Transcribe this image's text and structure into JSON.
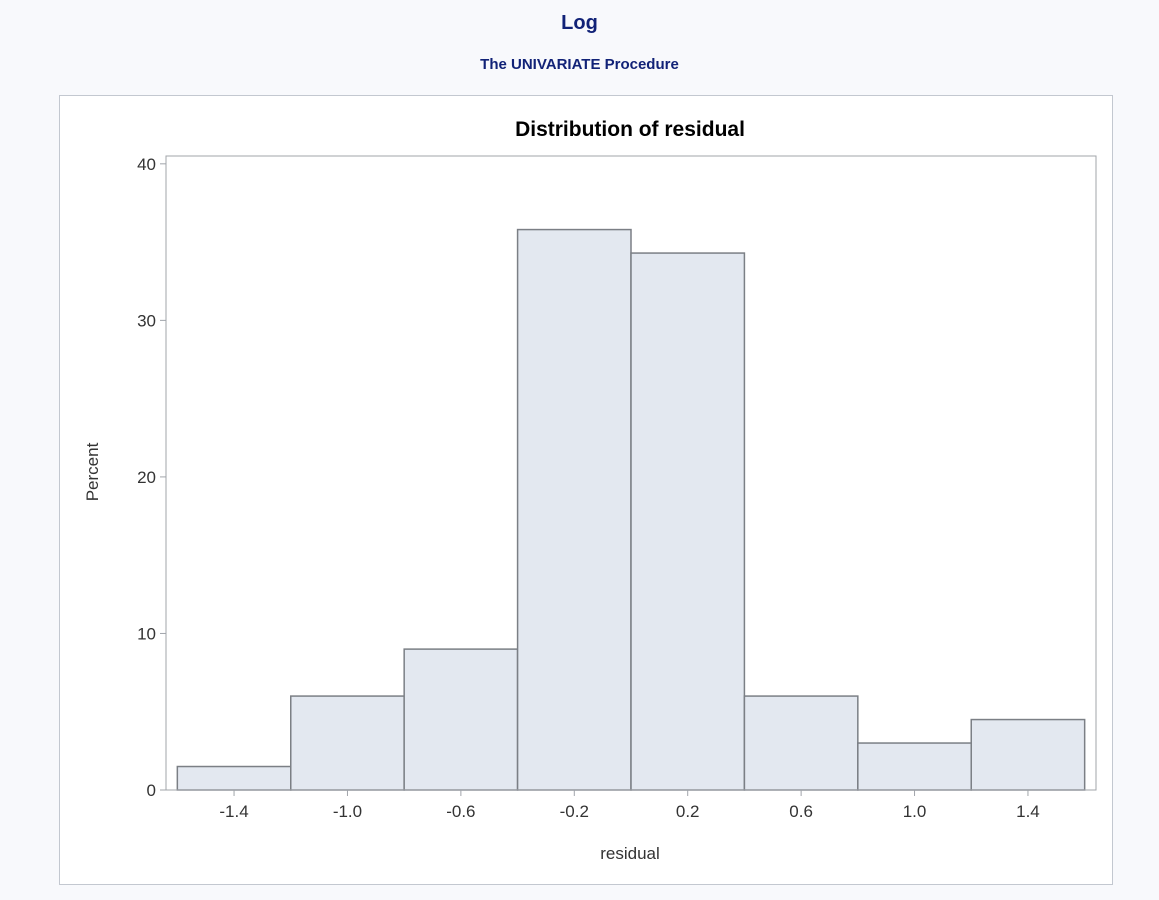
{
  "page": {
    "title": "Log",
    "subtitle": "The UNIVARIATE Procedure"
  },
  "colors": {
    "title": "#112277",
    "bar_fill": "#e3e8f0",
    "bar_stroke": "#7b7f85",
    "frame": "#a0a4aa"
  },
  "chart_data": {
    "type": "bar",
    "title": "Distribution of residual",
    "xlabel": "residual",
    "ylabel": "Percent",
    "bin_edges": [
      -1.6,
      -1.2,
      -0.8,
      -0.4,
      0.0,
      0.4,
      0.8,
      1.2,
      1.6
    ],
    "values": [
      1.5,
      6.0,
      9.0,
      35.8,
      34.3,
      6.0,
      3.0,
      4.5
    ],
    "xticks": [
      -1.4,
      -1.0,
      -0.6,
      -0.2,
      0.2,
      0.6,
      1.0,
      1.4
    ],
    "xtick_labels": [
      "-1.4",
      "-1.0",
      "-0.6",
      "-0.2",
      "0.2",
      "0.6",
      "1.0",
      "1.4"
    ],
    "yticks": [
      0,
      10,
      20,
      30,
      40
    ],
    "ytick_labels": [
      "0",
      "10",
      "20",
      "30",
      "40"
    ],
    "ylim": [
      0,
      40.5
    ],
    "grid": false
  }
}
